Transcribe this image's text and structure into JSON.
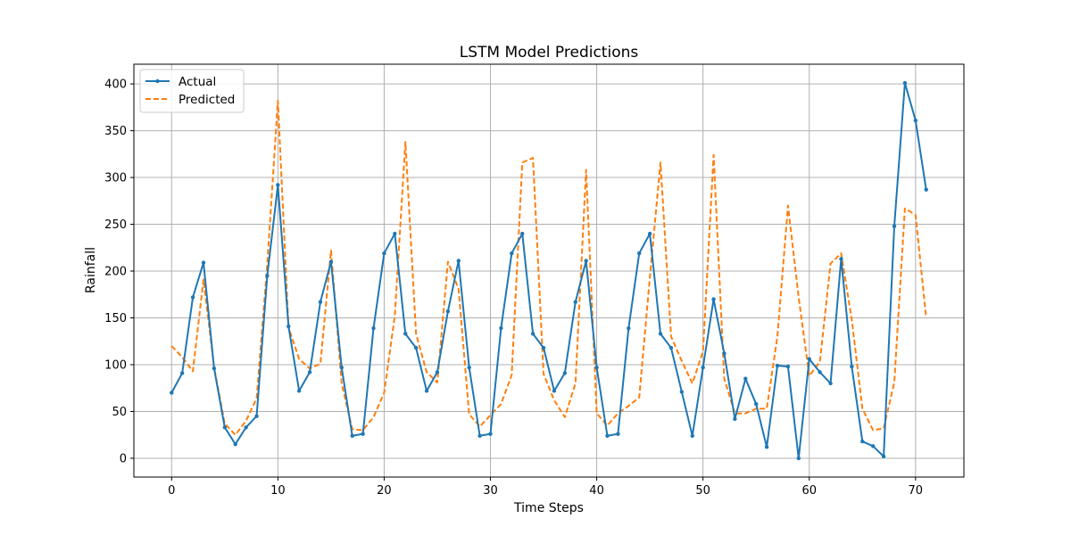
{
  "chart_data": {
    "type": "line",
    "title": "LSTM Model Predictions",
    "xlabel": "Time Steps",
    "ylabel": "Rainfall",
    "xlim": [
      -3.55,
      74.55
    ],
    "ylim": [
      -20.05,
      421.05
    ],
    "xticks": [
      0,
      10,
      20,
      30,
      40,
      50,
      60,
      70
    ],
    "yticks": [
      0,
      50,
      100,
      150,
      200,
      250,
      300,
      350,
      400
    ],
    "grid": true,
    "legend_position": "upper-left",
    "series": [
      {
        "name": "Actual",
        "color": "#1f77b4",
        "style": "solid-with-markers",
        "values": [
          70,
          91,
          172,
          209,
          96,
          33,
          15,
          33,
          45,
          195,
          292,
          141,
          72,
          92,
          167,
          210,
          97,
          24,
          26,
          139,
          219,
          240,
          133,
          118,
          72,
          92,
          157,
          211,
          97,
          24,
          26,
          139,
          219,
          240,
          133,
          118,
          72,
          91,
          167,
          211,
          97,
          24,
          26,
          139,
          219,
          240,
          133,
          118,
          71,
          24,
          97,
          170,
          112,
          42,
          85,
          58,
          12,
          99,
          98,
          0,
          106,
          92,
          80,
          213,
          98,
          18,
          13,
          2,
          248,
          401,
          361,
          287
        ]
      },
      {
        "name": "Predicted",
        "color": "#ff7f0e",
        "style": "dashed",
        "values": [
          120,
          108,
          93,
          191,
          97,
          37,
          25,
          40,
          64,
          207,
          382,
          140,
          106,
          96,
          101,
          222,
          80,
          31,
          30,
          44,
          70,
          152,
          338,
          133,
          92,
          81,
          210,
          181,
          47,
          34,
          46,
          58,
          89,
          316,
          321,
          90,
          62,
          44,
          80,
          308,
          48,
          35,
          48,
          56,
          65,
          193,
          316,
          130,
          104,
          80,
          114,
          324,
          85,
          48,
          48,
          53,
          53,
          130,
          270,
          172,
          88,
          103,
          208,
          219,
          148,
          53,
          30,
          32,
          81,
          267,
          260,
          150
        ]
      }
    ]
  }
}
